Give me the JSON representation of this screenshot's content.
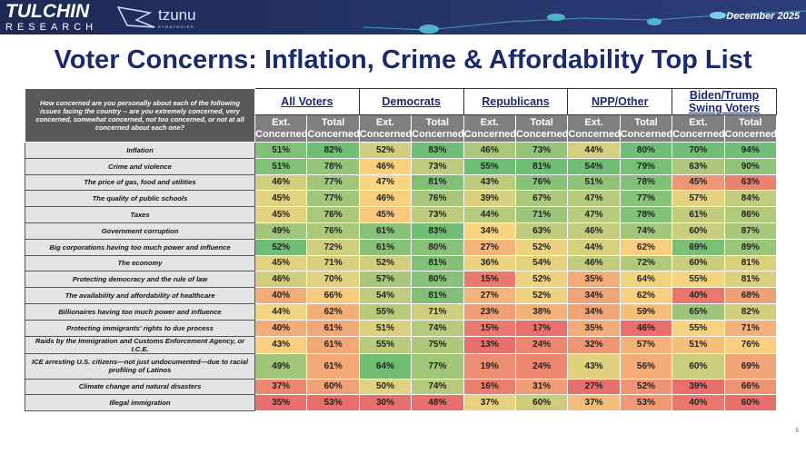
{
  "header": {
    "brand": "TULCHIN",
    "brand_sub": "RESEARCH",
    "partner": "tzunu",
    "partner_sub": "STRATEGIES",
    "date": "December 2025"
  },
  "title": "Voter Concerns: Inflation, Crime & Affordability Top List",
  "table": {
    "question": "How concerned are you personally about each of the following issues facing the country -- are you extremely concerned, very concerned, somewhat concerned, not too concerned, or not at all concerned about each one?",
    "groups": [
      "All Voters",
      "Democrats",
      "Republicans",
      "NPP/Other",
      "Biden/Trump Swing Voters"
    ],
    "subheaders": [
      "Ext. Concerned",
      "Total Concerned",
      "Ext. Concerned",
      "Total Concerned",
      "Ext. Concerned",
      "Total Concerned",
      "Ext. Concerned",
      "Total Concerned",
      "Ext. Concerned",
      "Total Concerned"
    ],
    "rows": [
      {
        "label": "Inflation",
        "values": [
          "51%",
          "82%",
          "52%",
          "83%",
          "46%",
          "73%",
          "44%",
          "80%",
          "70%",
          "94%"
        ]
      },
      {
        "label": "Crime and violence",
        "values": [
          "51%",
          "78%",
          "46%",
          "73%",
          "55%",
          "81%",
          "54%",
          "79%",
          "63%",
          "90%"
        ]
      },
      {
        "label": "The price of gas, food and utilities",
        "values": [
          "46%",
          "77%",
          "47%",
          "81%",
          "43%",
          "76%",
          "51%",
          "78%",
          "45%",
          "63%"
        ]
      },
      {
        "label": "The quality of public schools",
        "values": [
          "45%",
          "77%",
          "46%",
          "76%",
          "39%",
          "67%",
          "47%",
          "77%",
          "57%",
          "84%"
        ]
      },
      {
        "label": "Taxes",
        "values": [
          "45%",
          "76%",
          "45%",
          "73%",
          "44%",
          "71%",
          "47%",
          "78%",
          "61%",
          "86%"
        ]
      },
      {
        "label": "Government corruption",
        "values": [
          "49%",
          "76%",
          "61%",
          "83%",
          "34%",
          "63%",
          "46%",
          "74%",
          "60%",
          "87%"
        ]
      },
      {
        "label": "Big corporations having too much power and influence",
        "values": [
          "52%",
          "72%",
          "61%",
          "80%",
          "27%",
          "52%",
          "44%",
          "62%",
          "69%",
          "89%"
        ]
      },
      {
        "label": "The economy",
        "values": [
          "45%",
          "71%",
          "52%",
          "81%",
          "36%",
          "54%",
          "46%",
          "72%",
          "60%",
          "81%"
        ]
      },
      {
        "label": "Protecting democracy and the rule of law",
        "values": [
          "46%",
          "70%",
          "57%",
          "80%",
          "15%",
          "52%",
          "35%",
          "64%",
          "55%",
          "81%"
        ]
      },
      {
        "label": "The availability and affordability of healthcare",
        "values": [
          "40%",
          "66%",
          "54%",
          "81%",
          "27%",
          "52%",
          "34%",
          "62%",
          "40%",
          "68%"
        ]
      },
      {
        "label": "Billionaires having too much power and influence",
        "values": [
          "44%",
          "62%",
          "55%",
          "71%",
          "23%",
          "38%",
          "34%",
          "59%",
          "65%",
          "82%"
        ]
      },
      {
        "label": "Protecting immigrants' rights to due process",
        "values": [
          "40%",
          "61%",
          "51%",
          "74%",
          "15%",
          "17%",
          "35%",
          "46%",
          "55%",
          "71%"
        ]
      },
      {
        "label": "Raids by the Immigration and Customs Enforcement Agency, or I.C.E.",
        "values": [
          "43%",
          "61%",
          "55%",
          "75%",
          "13%",
          "24%",
          "32%",
          "57%",
          "51%",
          "76%"
        ]
      },
      {
        "label": "ICE arresting U.S. citizens—not just undocumented—due to racial profiling of Latinos",
        "values": [
          "49%",
          "61%",
          "64%",
          "77%",
          "19%",
          "24%",
          "43%",
          "56%",
          "60%",
          "69%"
        ]
      },
      {
        "label": "Climate change and natural disasters",
        "values": [
          "37%",
          "60%",
          "50%",
          "74%",
          "16%",
          "31%",
          "27%",
          "52%",
          "39%",
          "66%"
        ]
      },
      {
        "label": "Illegal immigration",
        "values": [
          "35%",
          "53%",
          "30%",
          "48%",
          "37%",
          "60%",
          "37%",
          "53%",
          "40%",
          "60%"
        ]
      }
    ]
  },
  "page_number": "5"
}
